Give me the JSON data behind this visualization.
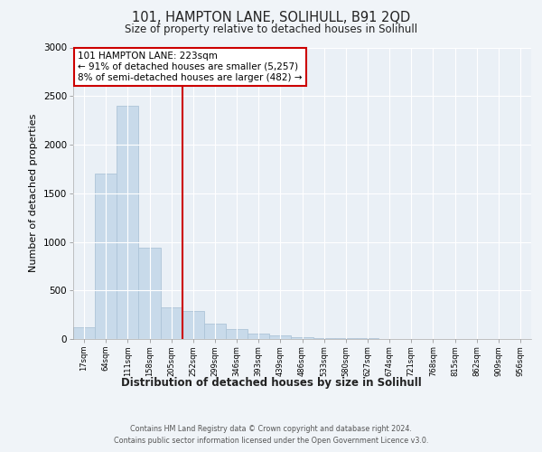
{
  "title1": "101, HAMPTON LANE, SOLIHULL, B91 2QD",
  "title2": "Size of property relative to detached houses in Solihull",
  "xlabel": "Distribution of detached houses by size in Solihull",
  "ylabel": "Number of detached properties",
  "footer": "Contains HM Land Registry data © Crown copyright and database right 2024.\nContains public sector information licensed under the Open Government Licence v3.0.",
  "annotation_line1": "101 HAMPTON LANE: 223sqm",
  "annotation_line2": "← 91% of detached houses are smaller (5,257)",
  "annotation_line3": "8% of semi-detached houses are larger (482) →",
  "bar_color": "#c8daea",
  "bar_edge_color": "#adc4d8",
  "redline_color": "#cc0000",
  "categories": [
    "17sqm",
    "64sqm",
    "111sqm",
    "158sqm",
    "205sqm",
    "252sqm",
    "299sqm",
    "346sqm",
    "393sqm",
    "439sqm",
    "486sqm",
    "533sqm",
    "580sqm",
    "627sqm",
    "674sqm",
    "721sqm",
    "768sqm",
    "815sqm",
    "862sqm",
    "909sqm",
    "956sqm"
  ],
  "values": [
    120,
    1700,
    2400,
    940,
    330,
    290,
    155,
    100,
    55,
    35,
    20,
    12,
    8,
    5,
    3,
    2,
    2,
    1,
    1,
    1,
    0
  ],
  "ylim": [
    0,
    3000
  ],
  "yticks": [
    0,
    500,
    1000,
    1500,
    2000,
    2500,
    3000
  ],
  "bg_color": "#f0f4f8",
  "plot_bg_color": "#eaf0f6",
  "grid_color": "#ffffff",
  "annotation_box_color": "#ffffff",
  "annotation_box_edge": "#cc0000",
  "redline_idx": 4.5
}
